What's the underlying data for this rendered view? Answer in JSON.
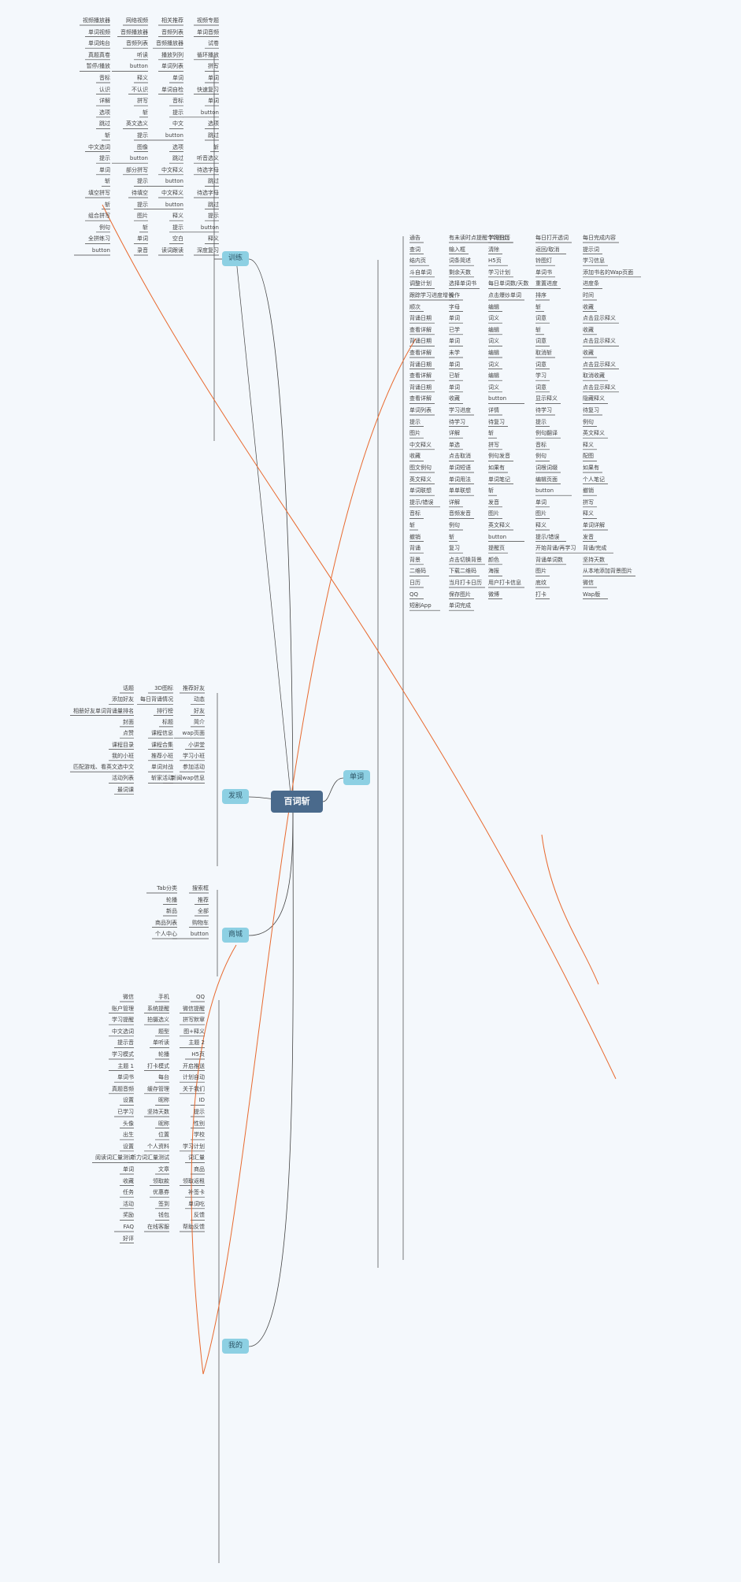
{
  "root": "百词斩",
  "colors": {
    "root": "#4a6a8c",
    "hub": "#8dd0e3",
    "line": "#444444",
    "link": "#e8692e",
    "bg": "#f4f8fc"
  },
  "hubs": {
    "train": "训练",
    "discover": "发现",
    "shop": "商城",
    "mine": "我的",
    "words": "单词"
  },
  "tree": {
    "train": [
      "视频播放器",
      "网络视频",
      "相关推荐",
      "视频专题",
      "单词视频",
      "音频播放器",
      "音频列表",
      "单词音频",
      "单词炖台",
      "音频列表",
      "音频播放器",
      "试卷",
      "真题真卷",
      "听读",
      "播放列列",
      "循环播放",
      "暂停/播放",
      "button",
      "单词列表",
      "拼写",
      "音标",
      "释义",
      "单词",
      "单词",
      "认识",
      "不认识",
      "单词自检",
      "快速复习",
      "详解",
      "拼写",
      "音标",
      "单词",
      "选项",
      "斩",
      "提示",
      "button",
      "跳过",
      "英文选义",
      "中文",
      "选项",
      "斩",
      "提示",
      "button",
      "跳过",
      "中文选词",
      "图像",
      "选项",
      "斩",
      "提示",
      "button",
      "跳过",
      "听音选义",
      "单词",
      "部分拼写",
      "中文释义",
      "待选字母",
      "斩",
      "提示",
      "button",
      "跳过",
      "填空拼写",
      "待填空",
      "中文释义",
      "待选字母",
      "斩",
      "提示",
      "button",
      "跳过",
      "组合拼写",
      "图片",
      "释义",
      "提示",
      "例句",
      "斩",
      "提示",
      "button",
      "全拼练习",
      "单词",
      "空白",
      "释义",
      "button",
      "录音",
      "读词跟读",
      "深度复习"
    ],
    "discover": [
      "话题",
      "3D图标",
      "推荐好友",
      "添加好友",
      "每日背诵情况",
      "动态",
      "相册好友单词背诵量排名",
      "排行榜",
      "好友",
      "封面",
      "标题",
      "简介",
      "点赞",
      "课程信息",
      "wap页面",
      "课程目录",
      "课程合集",
      "小讲堂",
      "我的小班",
      "推荐小班",
      "学习小班",
      "匹配游戏、看英文选中文",
      "单词对战",
      "参加活动",
      "活动列表",
      "斩家活动",
      "新闻wap信息",
      "最词课"
    ],
    "shop": [
      "Tab分类",
      "搜索框",
      "轮播",
      "推荐",
      "新品",
      "全部",
      "商品列表",
      "购物车",
      "个人中心",
      "button"
    ],
    "mine": [
      "微信",
      "手机",
      "QQ",
      "账户管理",
      "系统提醒",
      "微信提醒",
      "学习提醒",
      "拍摄选义",
      "拼写默窜",
      "中文选词",
      "题型",
      "图+释义",
      "提示音",
      "单听读",
      "主题 2",
      "学习模式",
      "轮播",
      "H5页",
      "主题 1",
      "打卡模式",
      "开启推送",
      "单词书",
      "每台",
      "计划自动",
      "真题音频",
      "缓存管理",
      "关于我们",
      "设置",
      "昵称",
      "ID",
      "已学习",
      "坚持天数",
      "提示",
      "头像",
      "昵称",
      "性别",
      "出生",
      "位置",
      "学校",
      "设置",
      "个人资料",
      "学习计划",
      "阅读词汇量测试",
      "听力词汇量测试",
      "词汇量",
      "单词",
      "文章",
      "商品",
      "收藏",
      "领取款",
      "领取返租",
      "任务",
      "优惠券",
      "补签卡",
      "活动",
      "签到",
      "单词吃",
      "奖励",
      "钱包",
      "反馈",
      "FAQ",
      "在线客服",
      "帮助反馈",
      "好评"
    ],
    "words": [
      "通告",
      "有未读时点提醒个铃图灯",
      "学习日历",
      "每日打开透词",
      "每日完成内容",
      "查词",
      "输入框",
      "清除",
      "返回/取消",
      "提示词",
      "结内页",
      "词条简述",
      "H5页",
      "铃图灯",
      "学习信息",
      "斗自单词",
      "剩余天数",
      "学习计划",
      "单词书",
      "添加书名的Wap页面",
      "调整计划",
      "选择单词书",
      "每日单词数/天数",
      "重置进度",
      "进度条",
      "跟踪学习进度增长",
      "操作",
      "点击爆炒单词",
      "排序",
      "时间",
      "顺次",
      "字母",
      "编辑",
      "斩",
      "收藏",
      "背诵日期",
      "单词",
      "词义",
      "词意",
      "点击显示释义",
      "查看详解",
      "已学",
      "编辑",
      "斩",
      "收藏",
      "背诵日期",
      "单词",
      "词义",
      "词意",
      "点击显示释义",
      "查看详解",
      "未学",
      "编辑",
      "取消斩",
      "收藏",
      "背诵日期",
      "单词",
      "词义",
      "词意",
      "点击显示释义",
      "查看详解",
      "已斩",
      "编辑",
      "学习",
      "取消收藏",
      "背诵日期",
      "单词",
      "词义",
      "词意",
      "点击显示释义",
      "查看详解",
      "收藏",
      "button",
      "显示释义",
      "隐藏释义",
      "单词列表",
      "学习进度",
      "详情",
      "待学习",
      "待复习",
      "提示",
      "待学习",
      "待复习",
      "提示",
      "例句",
      "图片",
      "详解",
      "斩",
      "例句翻译",
      "英文释义",
      "中文释义",
      "单选",
      "拼写",
      "音标",
      "释义",
      "收藏",
      "点击取消",
      "例句发音",
      "例句",
      "配图",
      "图文例句",
      "单词短语",
      "如果有",
      "词根词缀",
      "如果有",
      "英文释义",
      "单词用法",
      "单词笔记",
      "编辑页面",
      "个人笔记",
      "单词联想",
      "单单联想",
      "斩",
      "button",
      "撤销",
      "提示/错误",
      "详解",
      "发音",
      "单词",
      "拼写",
      "音标",
      "音频发音",
      "图片",
      "图片",
      "释义",
      "斩",
      "例句",
      "英文释义",
      "释义",
      "单词详解",
      "撤销",
      "斩",
      "button",
      "提示/错误",
      "发音",
      "背诵",
      "复习",
      "提醒页",
      "开始背诵/再学习",
      "背诵/完成",
      "背景",
      "点击切换背景",
      "颜色",
      "背诵单词数",
      "坚持天数",
      "二维码",
      "下载二维码",
      "海报",
      "图片",
      "从本地添加背景图片",
      "日历",
      "当月打卡日历",
      "用户打卡信息",
      "底纹",
      "微信",
      "QQ",
      "保存图片",
      "微博",
      "打卡",
      "Wap版",
      "短剧App",
      "单词完成"
    ]
  }
}
